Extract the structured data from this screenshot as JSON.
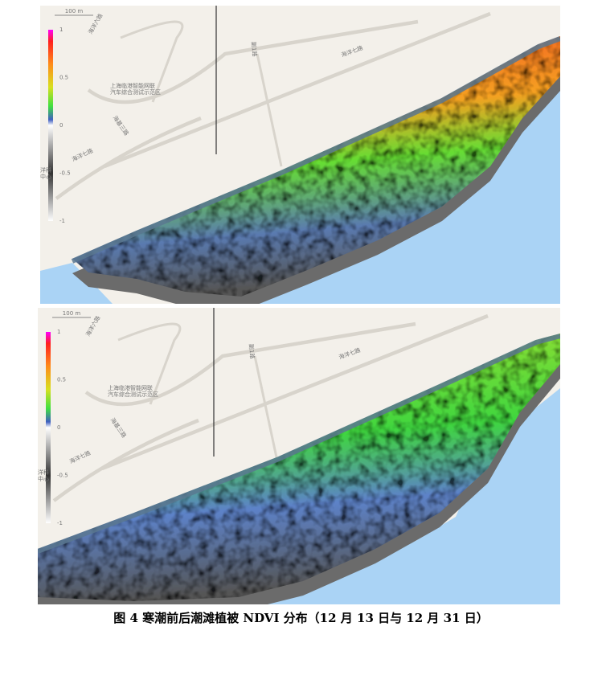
{
  "panels": [
    {
      "scale": "100 m",
      "colorbar": [
        "1",
        "0.5",
        "0",
        "-0.5",
        "-1"
      ],
      "labels": {
        "road1": "海洋六路",
        "road2": "海洋七路",
        "site": "上海临港智能网联",
        "site2": "汽车综合测试示范区",
        "road3": "海基三路",
        "road4": "海洋七路",
        "road5": "副1路",
        "edge": "洋科",
        "edge2": "中心"
      }
    },
    {
      "scale": "100 m",
      "colorbar": [
        "1",
        "0.5",
        "0",
        "-0.5",
        "-1"
      ],
      "labels": {
        "road1": "海洋六路",
        "road2": "海洋七路",
        "site": "上海临港智能网联",
        "site2": "汽车综合测试示范区",
        "road3": "海基三路",
        "road4": "海洋七路",
        "road5": "副1路",
        "edge": "洋科",
        "edge2": "中心"
      }
    }
  ],
  "caption": "图 4  寒潮前后潮滩植被 NDVI 分布（12 月 13 日与 12 月 31 日）"
}
